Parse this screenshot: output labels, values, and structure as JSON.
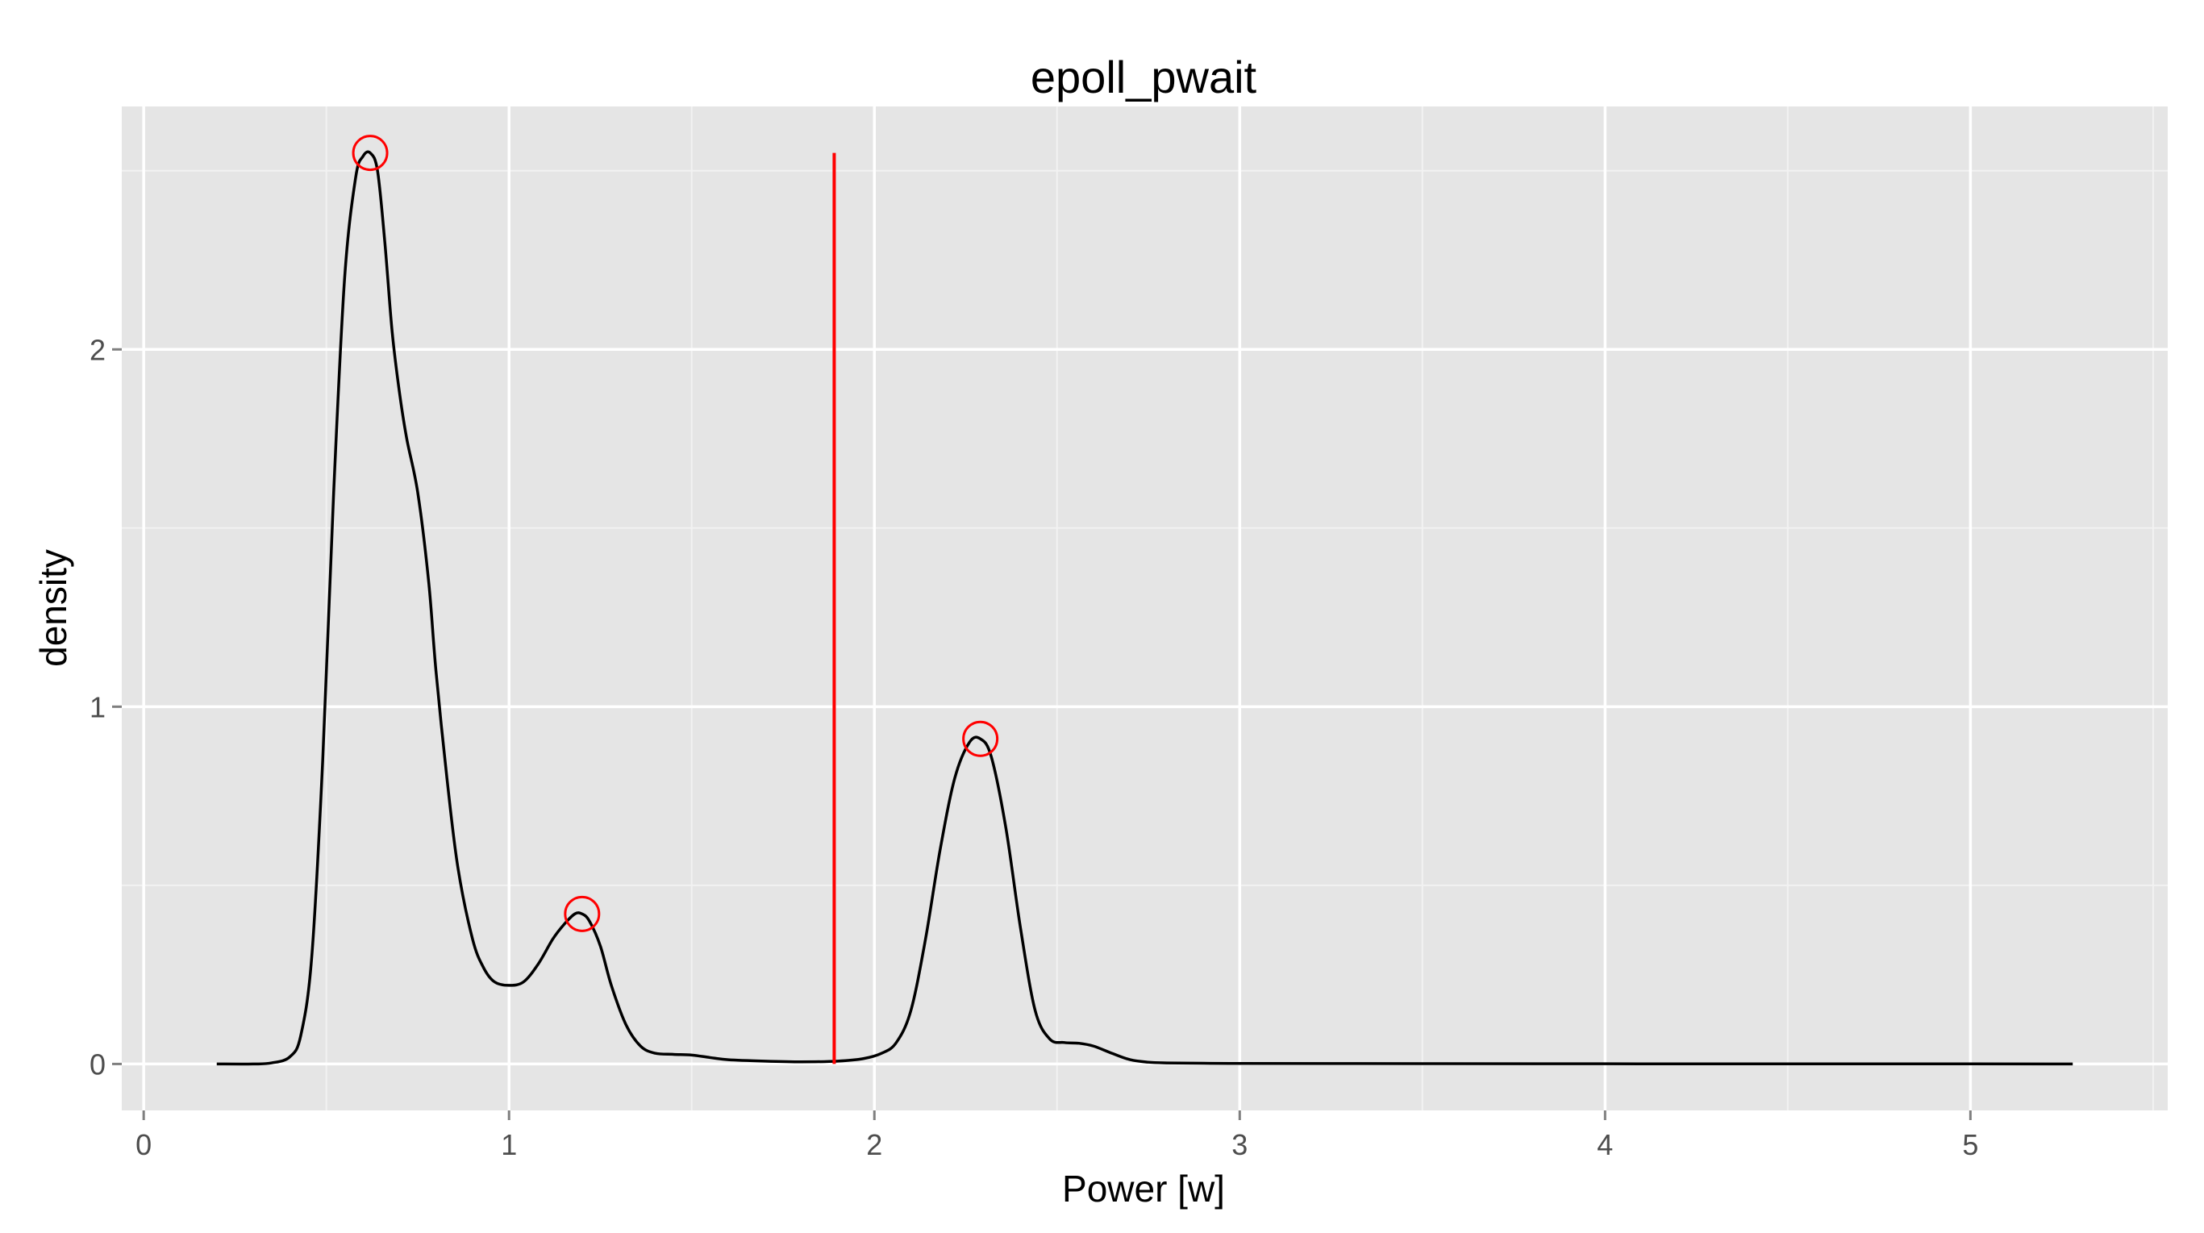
{
  "chart_data": {
    "type": "line",
    "title": "epoll_pwait",
    "xlabel": "Power [w]",
    "ylabel": "density",
    "xlim": [
      -0.06,
      5.54
    ],
    "ylim": [
      -0.13,
      2.68
    ],
    "x_ticks": [
      0,
      1,
      2,
      3,
      4,
      5
    ],
    "y_ticks": [
      0,
      1,
      2
    ],
    "x_tick_labels": [
      "0",
      "1",
      "2",
      "3",
      "4",
      "5"
    ],
    "y_tick_labels": [
      "0",
      "1",
      "2"
    ],
    "grid": true,
    "series": [
      {
        "type": "line",
        "color": "#000000",
        "x": [
          0.2,
          0.3,
          0.35,
          0.4,
          0.43,
          0.46,
          0.49,
          0.52,
          0.55,
          0.58,
          0.6,
          0.62,
          0.64,
          0.66,
          0.68,
          0.7,
          0.72,
          0.75,
          0.78,
          0.8,
          0.83,
          0.86,
          0.9,
          0.93,
          0.96,
          1.0,
          1.04,
          1.08,
          1.12,
          1.15,
          1.18,
          1.2,
          1.22,
          1.25,
          1.28,
          1.32,
          1.36,
          1.4,
          1.45,
          1.5,
          1.55,
          1.6,
          1.7,
          1.8,
          1.9,
          1.97,
          2.02,
          2.06,
          2.1,
          2.14,
          2.18,
          2.22,
          2.26,
          2.29,
          2.32,
          2.36,
          2.4,
          2.44,
          2.48,
          2.52,
          2.56,
          2.6,
          2.65,
          2.7,
          2.75,
          2.8,
          2.9,
          3.0,
          3.5,
          4.0,
          4.5,
          5.0,
          5.28
        ],
        "y": [
          0.0,
          0.0,
          0.003,
          0.02,
          0.08,
          0.3,
          0.85,
          1.6,
          2.2,
          2.48,
          2.54,
          2.55,
          2.5,
          2.3,
          2.05,
          1.88,
          1.75,
          1.6,
          1.35,
          1.1,
          0.8,
          0.55,
          0.35,
          0.27,
          0.23,
          0.22,
          0.23,
          0.28,
          0.35,
          0.39,
          0.42,
          0.42,
          0.4,
          0.33,
          0.22,
          0.11,
          0.05,
          0.03,
          0.027,
          0.025,
          0.018,
          0.012,
          0.008,
          0.006,
          0.008,
          0.015,
          0.03,
          0.06,
          0.15,
          0.35,
          0.6,
          0.8,
          0.9,
          0.91,
          0.86,
          0.66,
          0.38,
          0.15,
          0.07,
          0.06,
          0.058,
          0.05,
          0.03,
          0.012,
          0.005,
          0.003,
          0.002,
          0.0015,
          0.001,
          0.0005,
          0.0003,
          0.0002,
          0.0001
        ]
      },
      {
        "type": "vline",
        "color": "#ff0000",
        "x": 1.89,
        "y_range": [
          0.0,
          2.55
        ]
      }
    ],
    "markers": {
      "shape": "open-circle",
      "color": "#ff0000",
      "points": [
        {
          "x": 0.62,
          "y": 2.55
        },
        {
          "x": 1.2,
          "y": 0.42
        },
        {
          "x": 2.29,
          "y": 0.91
        }
      ]
    }
  }
}
